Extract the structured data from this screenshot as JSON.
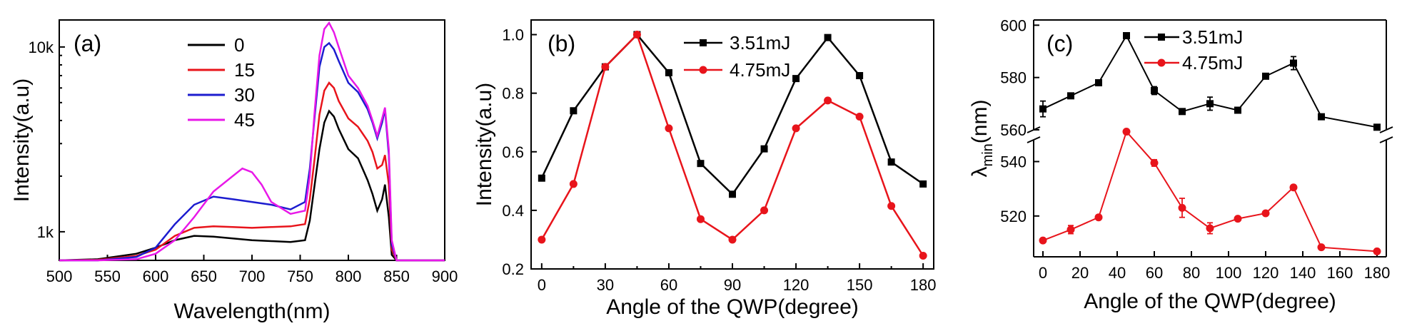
{
  "chart_data": [
    {
      "type": "line",
      "panel_label": "(a)",
      "xlabel": "Wavelength(nm)",
      "ylabel": "Intensity(a.u)",
      "xlim": [
        500,
        900
      ],
      "ylim": [
        700,
        14000
      ],
      "yscale": "log",
      "x_ticks": [
        "500",
        "550",
        "600",
        "650",
        "700",
        "750",
        "800",
        "850",
        "900"
      ],
      "y_ticks": [
        {
          "value": 1000,
          "label": "1k"
        },
        {
          "value": 10000,
          "label": "10k"
        }
      ],
      "legend_position": "top-center",
      "series": [
        {
          "name": "0",
          "color": "#000000",
          "x": [
            500,
            540,
            580,
            600,
            620,
            640,
            660,
            680,
            700,
            720,
            740,
            755,
            760,
            765,
            770,
            775,
            780,
            785,
            790,
            800,
            810,
            820,
            825,
            830,
            835,
            838,
            842,
            845,
            850,
            860,
            880,
            900
          ],
          "y": [
            700,
            710,
            760,
            820,
            900,
            950,
            940,
            920,
            900,
            890,
            880,
            900,
            1150,
            1800,
            2800,
            3900,
            4500,
            4200,
            3600,
            2800,
            2500,
            1900,
            1600,
            1300,
            1500,
            1800,
            1200,
            750,
            700,
            700,
            700,
            700
          ]
        },
        {
          "name": "15",
          "color": "#e8141b",
          "x": [
            500,
            540,
            580,
            600,
            620,
            640,
            660,
            680,
            700,
            720,
            740,
            755,
            760,
            765,
            770,
            775,
            780,
            785,
            790,
            800,
            810,
            820,
            825,
            830,
            835,
            838,
            842,
            845,
            850,
            860,
            880,
            900
          ],
          "y": [
            700,
            705,
            740,
            800,
            950,
            1050,
            1070,
            1060,
            1050,
            1060,
            1070,
            1100,
            1500,
            2500,
            4300,
            5800,
            6400,
            6000,
            5100,
            4100,
            3700,
            3100,
            2700,
            2200,
            2300,
            2600,
            1800,
            800,
            700,
            700,
            700,
            700
          ]
        },
        {
          "name": "30",
          "color": "#1c1ccf",
          "x": [
            500,
            540,
            580,
            600,
            620,
            640,
            660,
            680,
            700,
            720,
            740,
            755,
            760,
            765,
            770,
            775,
            780,
            785,
            790,
            800,
            810,
            820,
            825,
            830,
            835,
            838,
            842,
            845,
            850,
            860,
            880,
            900
          ],
          "y": [
            700,
            700,
            730,
            820,
            1100,
            1400,
            1550,
            1500,
            1450,
            1400,
            1320,
            1450,
            2200,
            4200,
            7800,
            10000,
            10500,
            9700,
            8400,
            6400,
            5700,
            4600,
            3900,
            3200,
            3900,
            4600,
            2600,
            850,
            700,
            700,
            700,
            700
          ]
        },
        {
          "name": "45",
          "color": "#e818e8",
          "x": [
            500,
            540,
            580,
            600,
            620,
            640,
            660,
            680,
            690,
            700,
            710,
            720,
            740,
            755,
            760,
            765,
            770,
            775,
            780,
            785,
            790,
            800,
            810,
            820,
            825,
            830,
            835,
            838,
            842,
            845,
            850,
            860,
            880,
            900
          ],
          "y": [
            700,
            700,
            710,
            760,
            900,
            1200,
            1650,
            2000,
            2200,
            2100,
            1800,
            1450,
            1250,
            1300,
            2000,
            4500,
            9000,
            12500,
            13500,
            12000,
            10000,
            7000,
            6000,
            4800,
            4000,
            3300,
            4100,
            4700,
            2800,
            900,
            700,
            700,
            700,
            700
          ]
        }
      ]
    },
    {
      "type": "line",
      "panel_label": "(b)",
      "xlabel": "Angle of the QWP(degree)",
      "ylabel": "Intensity(a.u)",
      "xlim": [
        -5,
        185
      ],
      "ylim": [
        0.2,
        1.05
      ],
      "x_ticks": [
        "0",
        "30",
        "60",
        "90",
        "120",
        "150",
        "180"
      ],
      "y_ticks": [
        "0.2",
        "0.4",
        "0.6",
        "0.8",
        "1.0"
      ],
      "legend_position": "top-center",
      "x": [
        0,
        15,
        30,
        45,
        60,
        75,
        90,
        105,
        120,
        135,
        150,
        165,
        180
      ],
      "series": [
        {
          "name": "3.51mJ",
          "color": "#000000",
          "marker": "square",
          "values": [
            0.51,
            0.74,
            0.89,
            1.0,
            0.87,
            0.56,
            0.455,
            0.61,
            0.85,
            0.99,
            0.86,
            0.565,
            0.49
          ]
        },
        {
          "name": "4.75mJ",
          "color": "#e8141b",
          "marker": "circle",
          "values": [
            0.3,
            0.49,
            0.89,
            1.0,
            0.68,
            0.37,
            0.3,
            0.4,
            0.68,
            0.775,
            0.72,
            0.415,
            0.245
          ]
        }
      ]
    },
    {
      "type": "line",
      "panel_label": "(c)",
      "xlabel": "Angle of the QWP(degree)",
      "ylabel": "λmin(nm)",
      "xlim": [
        -5,
        185
      ],
      "ylim": [
        505,
        602
      ],
      "axis_break": [
        548,
        560
      ],
      "x_ticks": [
        "0",
        "20",
        "40",
        "60",
        "80",
        "100",
        "120",
        "140",
        "160",
        "180"
      ],
      "y_ticks": [
        "520",
        "540",
        "560",
        "580",
        "600"
      ],
      "legend_position": "top-center",
      "x": [
        0,
        15,
        30,
        45,
        60,
        75,
        90,
        105,
        120,
        135,
        150,
        180
      ],
      "series": [
        {
          "name": "3.51mJ",
          "color": "#000000",
          "marker": "square",
          "values": [
            568,
            573,
            578,
            596,
            575,
            567,
            570,
            567.5,
            580.5,
            585.5,
            565,
            561
          ],
          "errors": [
            3,
            0.8,
            0.6,
            0.8,
            1.5,
            0.5,
            2.5,
            0.6,
            0.8,
            2.5,
            0.4,
            0.8
          ]
        },
        {
          "name": "4.75mJ",
          "color": "#e8141b",
          "marker": "circle",
          "values": [
            511,
            515,
            519.5,
            551,
            539.5,
            523,
            515.5,
            519,
            521,
            530.5,
            508.5,
            507
          ],
          "errors": [
            0.6,
            1.5,
            0.6,
            0.4,
            1.2,
            3.5,
            2,
            0.4,
            0.4,
            0.6,
            0.3,
            0.3
          ]
        }
      ]
    }
  ]
}
